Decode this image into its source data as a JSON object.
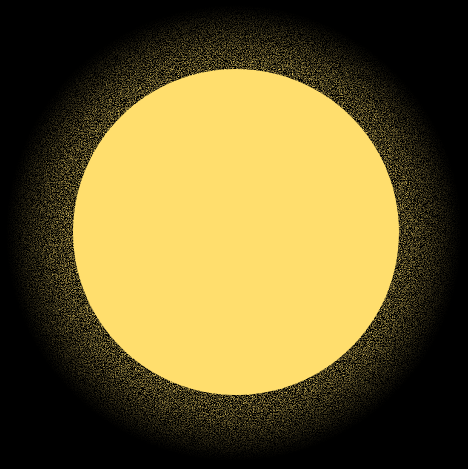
{
  "artwork": {
    "subject": "glowing-disc",
    "colors": {
      "background": "#000000",
      "disc": "#FFDE6D",
      "grain": "#F7D86A"
    }
  }
}
